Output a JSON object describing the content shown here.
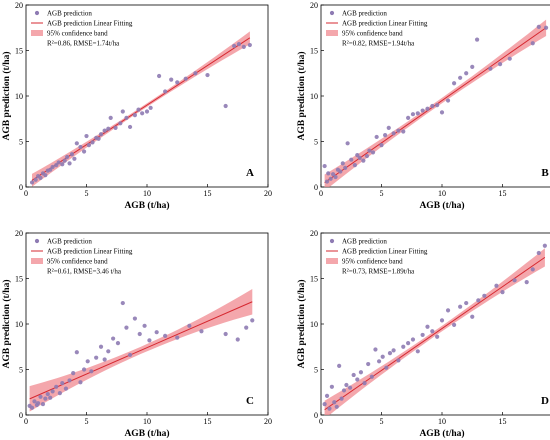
{
  "chart_data": [
    {
      "type": "scatter",
      "panel_label": "A",
      "xlabel": "AGB (t/ha)",
      "ylabel": "AGB prediction (t/ha)",
      "xlim": [
        0,
        20
      ],
      "ylim": [
        0,
        20
      ],
      "xticks": [
        0,
        5,
        10,
        15,
        20
      ],
      "yticks": [
        0,
        5,
        10,
        15,
        20
      ],
      "legend_position": "top-left",
      "legend": {
        "points": "AGB prediction",
        "line": "AGB prediction Linear Fitting",
        "band": "95% confidence band",
        "stats": "R²=0.86, RMSE=1.74t/ha"
      },
      "fit": {
        "slope": 0.87,
        "intercept": 0.3,
        "band_half_width": [
          0.2,
          0.7
        ]
      },
      "series": [
        {
          "name": "AGB prediction",
          "x": [
            0.5,
            0.8,
            1.0,
            1.2,
            1.4,
            1.6,
            1.8,
            2.0,
            2.2,
            2.5,
            2.7,
            3.0,
            3.2,
            3.4,
            3.6,
            3.8,
            4.0,
            4.2,
            4.5,
            4.8,
            5.0,
            5.2,
            5.5,
            5.8,
            6.0,
            6.2,
            6.5,
            6.8,
            7.0,
            7.4,
            7.8,
            8.0,
            8.3,
            8.6,
            9.0,
            9.3,
            9.6,
            10.0,
            10.3,
            11.0,
            11.5,
            12.0,
            12.5,
            13.2,
            14.0,
            15.0,
            16.5,
            17.2,
            17.6,
            18.0,
            18.5
          ],
          "y": [
            0.5,
            0.8,
            1.2,
            1.0,
            1.5,
            1.3,
            1.8,
            1.9,
            2.2,
            2.4,
            2.7,
            2.5,
            2.9,
            3.3,
            2.6,
            3.6,
            3.1,
            4.8,
            4.4,
            3.9,
            5.6,
            4.6,
            4.9,
            5.4,
            5.3,
            5.8,
            6.2,
            6.4,
            7.6,
            6.5,
            7.0,
            8.3,
            7.6,
            6.6,
            7.9,
            8.5,
            8.1,
            8.3,
            8.7,
            12.2,
            10.5,
            11.8,
            11.5,
            11.9,
            12.5,
            12.3,
            8.9,
            15.5,
            15.7,
            15.4,
            15.6
          ]
        }
      ]
    },
    {
      "type": "scatter",
      "panel_label": "B",
      "xlabel": "AGB (t/ha)",
      "ylabel": "AGB prediction (t/ha)",
      "xlim": [
        0,
        20
      ],
      "ylim": [
        0,
        20
      ],
      "xticks": [
        0,
        5,
        10,
        15,
        20
      ],
      "yticks": [
        0,
        5,
        10,
        15,
        20
      ],
      "legend_position": "top-left",
      "legend": {
        "points": "AGB prediction",
        "line": "AGB prediction Linear Fitting",
        "band": "95% confidence band",
        "stats": "R²=0.82, RMSE=1.94t/ha"
      },
      "fit": {
        "slope": 0.93,
        "intercept": 0.2,
        "band_half_width": [
          0.3,
          0.9
        ]
      },
      "series": [
        {
          "name": "AGB prediction",
          "x": [
            0.3,
            0.5,
            0.6,
            0.8,
            1.0,
            1.2,
            1.4,
            1.6,
            1.8,
            2.0,
            2.2,
            2.5,
            2.8,
            3.0,
            3.2,
            3.5,
            3.8,
            4.0,
            4.3,
            4.6,
            5.0,
            5.3,
            5.6,
            6.0,
            6.4,
            6.8,
            7.2,
            7.6,
            8.0,
            8.4,
            8.8,
            9.2,
            9.6,
            10.0,
            10.5,
            11.0,
            11.5,
            12.0,
            12.5,
            12.9,
            14.0,
            14.8,
            15.6,
            17.5,
            18.0,
            18.6
          ],
          "y": [
            2.3,
            0.6,
            1.5,
            0.9,
            1.4,
            1.1,
            1.9,
            1.7,
            2.6,
            2.1,
            4.8,
            3.0,
            2.4,
            3.5,
            3.2,
            2.9,
            3.4,
            4.0,
            3.8,
            5.5,
            4.6,
            5.7,
            6.5,
            5.9,
            6.2,
            6.1,
            7.6,
            8.0,
            8.1,
            8.4,
            8.6,
            8.9,
            9.0,
            8.2,
            9.5,
            11.4,
            12.0,
            12.5,
            13.2,
            16.2,
            13.0,
            13.5,
            14.1,
            15.8,
            17.6,
            17.5
          ]
        }
      ]
    },
    {
      "type": "scatter",
      "panel_label": "C",
      "xlabel": "AGB (t/ha)",
      "ylabel": "AGB prediction (t/ha)",
      "xlim": [
        0,
        20
      ],
      "ylim": [
        0,
        20
      ],
      "xticks": [
        0,
        5,
        10,
        15,
        20
      ],
      "yticks": [
        0,
        5,
        10,
        15,
        20
      ],
      "legend_position": "top-left",
      "legend": {
        "points": "AGB prediction",
        "line": "AGB prediction Linear Fitting",
        "band": "95% confidence band",
        "stats": "R²=0.61, RMSE=3.46 t/ha"
      },
      "fit": {
        "slope": 0.58,
        "intercept": 1.6,
        "band_half_width": [
          0.4,
          1.4
        ]
      },
      "series": [
        {
          "name": "AGB prediction",
          "x": [
            0.3,
            0.5,
            0.7,
            0.9,
            1.0,
            1.2,
            1.4,
            1.6,
            1.8,
            2.0,
            2.2,
            2.5,
            2.8,
            3.0,
            3.3,
            3.6,
            3.9,
            4.2,
            4.5,
            4.8,
            5.1,
            5.4,
            5.8,
            6.2,
            6.5,
            6.8,
            7.2,
            7.6,
            8.0,
            8.3,
            8.6,
            9.0,
            9.4,
            9.8,
            10.2,
            10.8,
            11.5,
            12.5,
            13.5,
            14.5,
            16.5,
            17.5,
            18.2,
            18.7
          ],
          "y": [
            1.0,
            0.8,
            1.5,
            1.1,
            1.3,
            2.0,
            1.2,
            1.8,
            2.3,
            1.9,
            2.6,
            3.1,
            2.4,
            3.5,
            2.9,
            3.8,
            4.6,
            6.9,
            3.6,
            5.0,
            5.9,
            4.8,
            6.3,
            7.5,
            6.1,
            7.0,
            8.4,
            7.9,
            12.3,
            9.6,
            6.6,
            10.6,
            8.9,
            9.8,
            8.2,
            9.1,
            8.7,
            8.5,
            9.8,
            9.2,
            8.9,
            8.3,
            9.6,
            10.4
          ]
        }
      ]
    },
    {
      "type": "scatter",
      "panel_label": "D",
      "xlabel": "AGB (t/ha)",
      "ylabel": "AGB prediction (t/ha)",
      "xlim": [
        0,
        20
      ],
      "ylim": [
        0,
        20
      ],
      "xticks": [
        0,
        5,
        10,
        15,
        20
      ],
      "yticks": [
        0,
        5,
        10,
        15,
        20
      ],
      "legend_position": "top-left",
      "legend": {
        "points": "AGB prediction",
        "line": "AGB prediction Linear Fitting",
        "band": "95% confidence band",
        "stats": "R²=0.73, RMSE=1.89t/ha"
      },
      "fit": {
        "slope": 0.92,
        "intercept": 0.3,
        "band_half_width": [
          0.3,
          1.0
        ]
      },
      "series": [
        {
          "name": "AGB prediction",
          "x": [
            0.3,
            0.5,
            0.7,
            0.9,
            1.1,
            1.3,
            1.5,
            1.7,
            1.9,
            2.1,
            2.4,
            2.7,
            3.0,
            3.3,
            3.6,
            3.9,
            4.2,
            4.5,
            4.8,
            5.1,
            5.4,
            5.7,
            6.0,
            6.4,
            6.8,
            7.2,
            7.6,
            8.0,
            8.4,
            8.8,
            9.2,
            9.6,
            10.0,
            10.5,
            11.0,
            11.5,
            12.0,
            12.5,
            13.0,
            13.5,
            14.5,
            15.0,
            16.0,
            17.0,
            17.5,
            18.0,
            18.5
          ],
          "y": [
            1.2,
            2.1,
            0.7,
            3.1,
            1.4,
            0.9,
            5.4,
            1.8,
            2.7,
            3.3,
            3.0,
            4.4,
            3.9,
            4.7,
            3.5,
            5.6,
            4.2,
            7.2,
            5.9,
            6.4,
            5.2,
            6.8,
            7.1,
            6.0,
            7.5,
            7.9,
            8.3,
            7.0,
            8.8,
            9.7,
            9.2,
            8.6,
            10.4,
            11.5,
            9.9,
            11.9,
            12.3,
            10.8,
            12.6,
            13.1,
            14.2,
            13.5,
            14.8,
            14.6,
            16.0,
            17.8,
            18.6
          ]
        }
      ]
    }
  ]
}
